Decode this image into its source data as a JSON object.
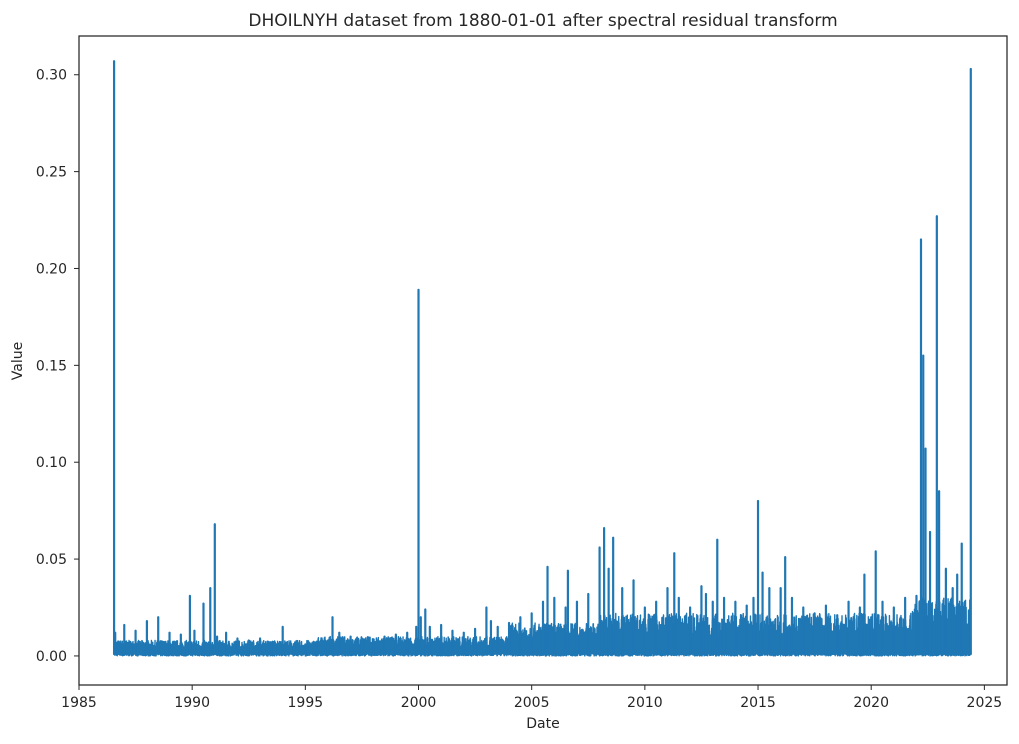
{
  "chart_data": {
    "type": "line",
    "title": "DHOILNYH dataset from 1880-01-01 after spectral residual transform",
    "xlabel": "Date",
    "ylabel": "Value",
    "xlim": [
      1985.0,
      2026.0
    ],
    "ylim": [
      -0.015,
      0.32
    ],
    "x_ticks": [
      1985,
      1990,
      1995,
      2000,
      2005,
      2010,
      2015,
      2020,
      2025
    ],
    "x_tick_labels": [
      "1985",
      "1990",
      "1995",
      "2000",
      "2005",
      "2010",
      "2015",
      "2020",
      "2025"
    ],
    "y_ticks": [
      0.0,
      0.05,
      0.1,
      0.15,
      0.2,
      0.25,
      0.3
    ],
    "y_tick_labels": [
      "0.00",
      "0.05",
      "0.10",
      "0.15",
      "0.20",
      "0.25",
      "0.30"
    ],
    "grid": false,
    "color": "#1f77b4",
    "series": [
      {
        "x": [
          1986.55,
          1986.6,
          1987.0,
          1987.5,
          1988.0,
          1988.5,
          1989.0,
          1989.5,
          1989.9,
          1990.1,
          1990.5,
          1990.8,
          1991.0,
          1991.1,
          1991.5,
          1992.0,
          1992.5,
          1993.0,
          1993.5,
          1994.0,
          1994.5,
          1995.0,
          1995.5,
          1996.0,
          1996.2,
          1996.5,
          1997.0,
          1997.5,
          1998.0,
          1998.5,
          1999.0,
          1999.5,
          1999.9,
          2000.0,
          2000.1,
          2000.3,
          2000.5,
          2001.0,
          2001.5,
          2002.0,
          2002.5,
          2003.0,
          2003.2,
          2003.5,
          2004.0,
          2004.5,
          2005.0,
          2005.5,
          2005.7,
          2006.0,
          2006.5,
          2006.6,
          2007.0,
          2007.5,
          2008.0,
          2008.2,
          2008.4,
          2008.6,
          2009.0,
          2009.5,
          2010.0,
          2010.5,
          2011.0,
          2011.3,
          2011.5,
          2012.0,
          2012.5,
          2012.7,
          2013.0,
          2013.2,
          2013.5,
          2014.0,
          2014.5,
          2014.8,
          2015.0,
          2015.2,
          2015.5,
          2016.0,
          2016.2,
          2016.5,
          2017.0,
          2017.5,
          2018.0,
          2018.5,
          2019.0,
          2019.5,
          2019.7,
          2020.0,
          2020.2,
          2020.5,
          2021.0,
          2021.5,
          2022.0,
          2022.2,
          2022.3,
          2022.4,
          2022.6,
          2022.9,
          2023.0,
          2023.3,
          2023.6,
          2023.8,
          2024.0,
          2024.4
        ],
        "values": [
          0.307,
          0.012,
          0.016,
          0.013,
          0.018,
          0.02,
          0.012,
          0.011,
          0.031,
          0.013,
          0.027,
          0.035,
          0.068,
          0.01,
          0.012,
          0.009,
          0.008,
          0.009,
          0.007,
          0.015,
          0.006,
          0.006,
          0.007,
          0.008,
          0.02,
          0.012,
          0.01,
          0.009,
          0.008,
          0.01,
          0.011,
          0.012,
          0.015,
          0.189,
          0.02,
          0.024,
          0.015,
          0.016,
          0.013,
          0.012,
          0.014,
          0.025,
          0.018,
          0.015,
          0.017,
          0.02,
          0.022,
          0.028,
          0.046,
          0.03,
          0.025,
          0.044,
          0.028,
          0.032,
          0.056,
          0.066,
          0.045,
          0.061,
          0.035,
          0.039,
          0.025,
          0.028,
          0.035,
          0.053,
          0.03,
          0.025,
          0.036,
          0.032,
          0.028,
          0.06,
          0.03,
          0.028,
          0.026,
          0.03,
          0.08,
          0.043,
          0.035,
          0.035,
          0.051,
          0.03,
          0.025,
          0.022,
          0.026,
          0.021,
          0.028,
          0.025,
          0.042,
          0.02,
          0.054,
          0.028,
          0.025,
          0.03,
          0.031,
          0.215,
          0.155,
          0.107,
          0.064,
          0.227,
          0.085,
          0.045,
          0.035,
          0.042,
          0.058,
          0.303
        ]
      }
    ]
  }
}
